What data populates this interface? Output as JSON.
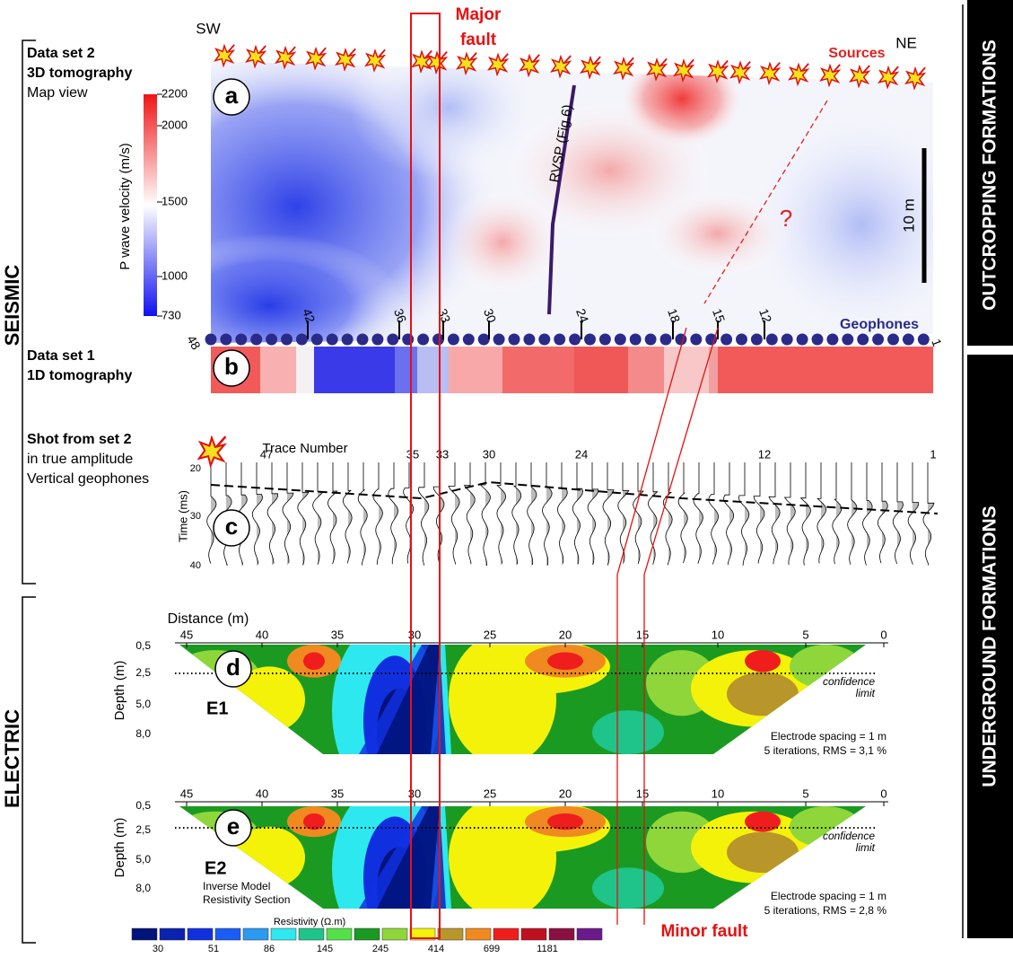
{
  "side_labels": {
    "seismic": "SEISMIC",
    "electric": "ELECTRIC",
    "outcropping": "OUTCROPPING FORMATIONS",
    "underground": "UNDERGROUND FORMATIONS"
  },
  "faults": {
    "major": [
      "Major",
      "fault"
    ],
    "minor": "Minor fault"
  },
  "panel_a": {
    "letter": "a",
    "title_lines": [
      "Data set 2",
      "3D tomography",
      "Map view"
    ],
    "sw": "SW",
    "ne": "NE",
    "sources": "Sources",
    "rvsp": "RVSP (Fig.6)",
    "question": "?",
    "scale": "10 m",
    "colorbar": {
      "label": "P wave velocity (m/s)",
      "ticks": [
        2200,
        2000,
        1500,
        1000,
        730
      ]
    },
    "geophones": "Geophones",
    "geophone_numbers": [
      48,
      42,
      36,
      33,
      30,
      24,
      18,
      15,
      12,
      1
    ]
  },
  "panel_b": {
    "letter": "b",
    "title_lines": [
      "Data set 1",
      "1D tomography"
    ]
  },
  "panel_c": {
    "letter": "c",
    "title_lines": [
      "Shot from set 2",
      "in true amplitude",
      "Vertical geophones"
    ],
    "trace_label": "Trace Number",
    "trace_numbers": [
      47,
      35,
      33,
      30,
      24,
      12,
      1
    ],
    "time_label": "Time (ms)",
    "time_ticks": [
      20,
      30,
      40
    ]
  },
  "panel_d": {
    "letter": "d",
    "name": "E1",
    "distance_label": "Distance (m)",
    "x_ticks": [
      45,
      40,
      35,
      30,
      25,
      20,
      15,
      10,
      5,
      0
    ],
    "depth_label": "Depth (m)",
    "y_ticks": [
      "0,5",
      "2,5",
      "5,0",
      "8,0"
    ],
    "confidence": [
      "confidence",
      "limit"
    ],
    "notes": [
      "Electrode spacing = 1 m",
      "5 iterations, RMS = 3,1 %"
    ]
  },
  "panel_e": {
    "letter": "e",
    "name": "E2",
    "subtitle": [
      "Inverse Model",
      "Resistivity Section"
    ],
    "x_ticks": [
      45,
      40,
      35,
      30,
      25,
      20,
      15,
      10,
      5,
      0
    ],
    "depth_label": "Depth (m)",
    "y_ticks": [
      "0,5",
      "2,5",
      "5,0",
      "8,0"
    ],
    "confidence": [
      "confidence",
      "limit"
    ],
    "notes": [
      "Electrode spacing = 1 m",
      "5 iterations, RMS = 2,8 %"
    ]
  },
  "legend": {
    "title": "Resistivity (Ω.m)",
    "labels": [
      30,
      51,
      86,
      145,
      245,
      414,
      699,
      1181
    ],
    "colors": [
      "#00137a",
      "#0a22b0",
      "#1030e0",
      "#1a5cf5",
      "#2b9af0",
      "#2ee8f0",
      "#1fc48a",
      "#55e04a",
      "#1b9a22",
      "#8fd63a",
      "#f5f20a",
      "#b8962a",
      "#f08a20",
      "#f01d1d",
      "#c01020",
      "#8a1040",
      "#6a1a8a"
    ]
  }
}
